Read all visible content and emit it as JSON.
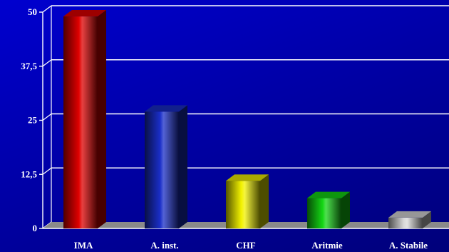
{
  "chart_data": {
    "type": "bar",
    "title": "",
    "xlabel": "",
    "ylabel": "",
    "ylim": [
      0,
      50
    ],
    "y_ticks": [
      "0",
      "12,5",
      "25",
      "37,5",
      "50"
    ],
    "y_tick_values": [
      0,
      12.5,
      25,
      37.5,
      50
    ],
    "categories": [
      "IMA",
      "A. inst.",
      "CHF",
      "Aritmie",
      "A. Stabile"
    ],
    "values": [
      49,
      27,
      11,
      7,
      2.5
    ],
    "bar_colors": [
      "#e00000",
      "#1a2ec8",
      "#f2f200",
      "#14d614",
      "#d8d8d8"
    ],
    "style": "3d-bars",
    "grid": true,
    "legend": "none"
  }
}
